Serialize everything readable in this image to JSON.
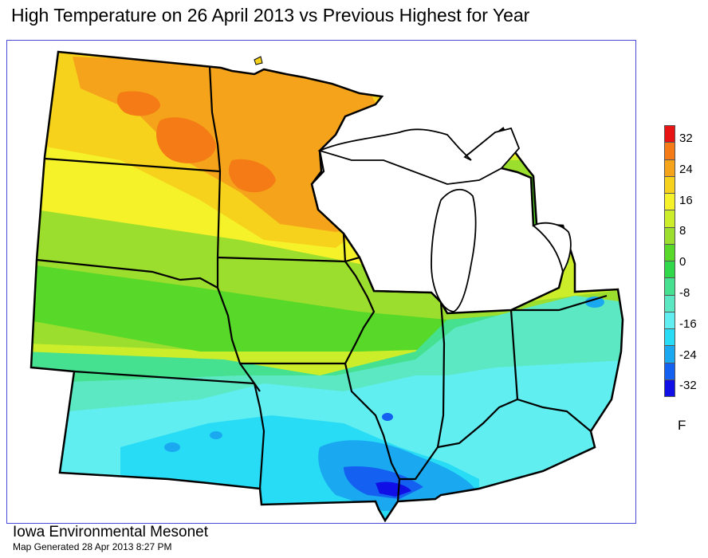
{
  "title": "High Temperature on 26 April 2013 vs Previous Highest for Year",
  "legend": {
    "unit": "F",
    "labels": [
      "32",
      "24",
      "16",
      "8",
      "0",
      "-8",
      "-16",
      "-24",
      "-32"
    ],
    "colors": [
      "#e81414",
      "#f47b16",
      "#f5a31a",
      "#f7d21c",
      "#f5f22a",
      "#ccee2a",
      "#9cde2e",
      "#58d828",
      "#30d84a",
      "#45e090",
      "#5ce8c2",
      "#60eef0",
      "#28dcf6",
      "#1aa8f0",
      "#1460f0",
      "#1010e6"
    ]
  },
  "credit": {
    "organization": "Iowa Environmental Mesonet",
    "generated": "Map Generated 28 Apr 2013 8:27 PM"
  }
}
